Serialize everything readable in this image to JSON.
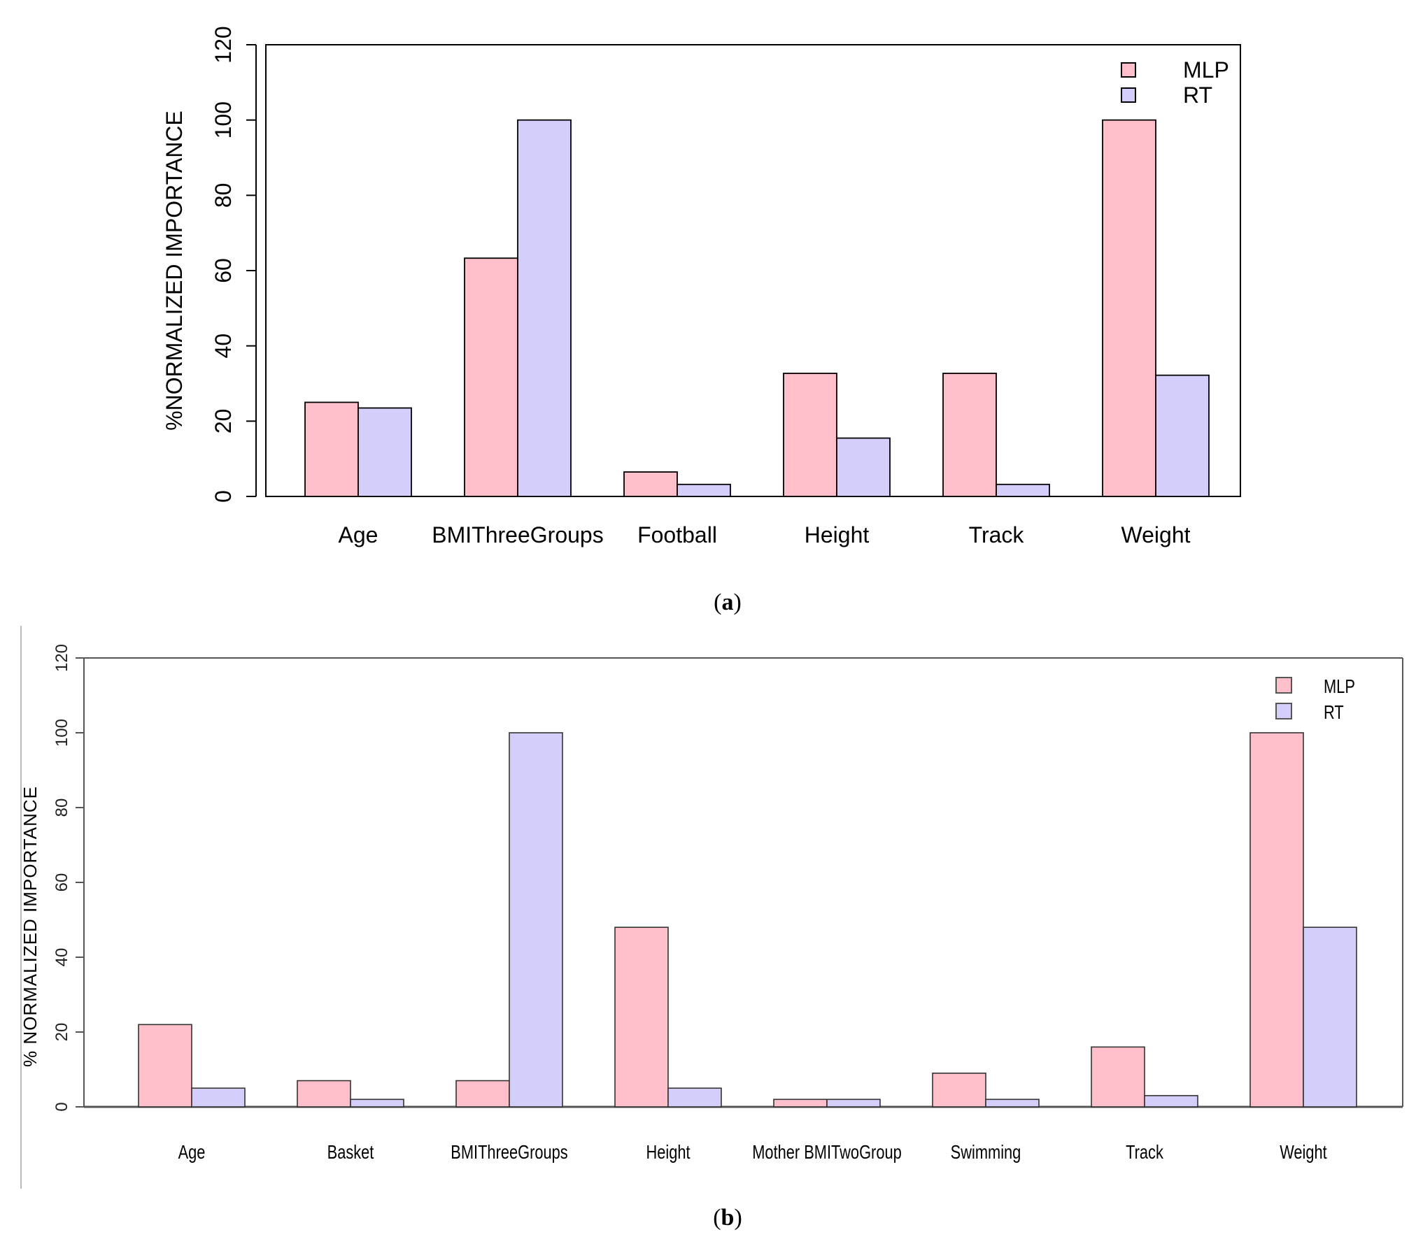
{
  "chart_data": [
    {
      "id": "a",
      "type": "bar",
      "caption_letter": "a",
      "title": "",
      "xlabel": "",
      "ylabel": "%NORMALIZED IMPORTANCE",
      "ylim": [
        0,
        120
      ],
      "yticks": [
        "0",
        "20",
        "40",
        "60",
        "80",
        "100",
        "120"
      ],
      "categories": [
        "Age",
        "BMIThreeGroups",
        "Football",
        "Height",
        "Track",
        "Weight"
      ],
      "series": [
        {
          "name": "MLP",
          "color": "#ffc0cb",
          "values": [
            25,
            63.3,
            6.5,
            32.7,
            32.7,
            100
          ]
        },
        {
          "name": "RT",
          "color": "#d4cffa",
          "values": [
            23.5,
            100,
            3.2,
            15.5,
            3.2,
            32.2
          ]
        }
      ],
      "legend_position": "top-right",
      "grid": false
    },
    {
      "id": "b",
      "type": "bar",
      "caption_letter": "b",
      "title": "",
      "xlabel": "",
      "ylabel": "% NORMALIZED IMPORTANCE",
      "ylim": [
        0,
        120
      ],
      "yticks": [
        "0",
        "20",
        "40",
        "60",
        "80",
        "100",
        "120"
      ],
      "categories": [
        "Age",
        "Basket",
        "BMIThreeGroups",
        "Height",
        "Mother BMITwoGroup",
        "Swimming",
        "Track",
        "Weight"
      ],
      "series": [
        {
          "name": "MLP",
          "color": "#ffc0cb",
          "values": [
            22,
            7,
            7,
            48,
            2,
            9,
            16,
            100
          ]
        },
        {
          "name": "RT",
          "color": "#d4cffa",
          "values": [
            5,
            2,
            100,
            5,
            2,
            2,
            3,
            48
          ]
        }
      ],
      "legend_position": "top-right",
      "grid": false
    }
  ]
}
